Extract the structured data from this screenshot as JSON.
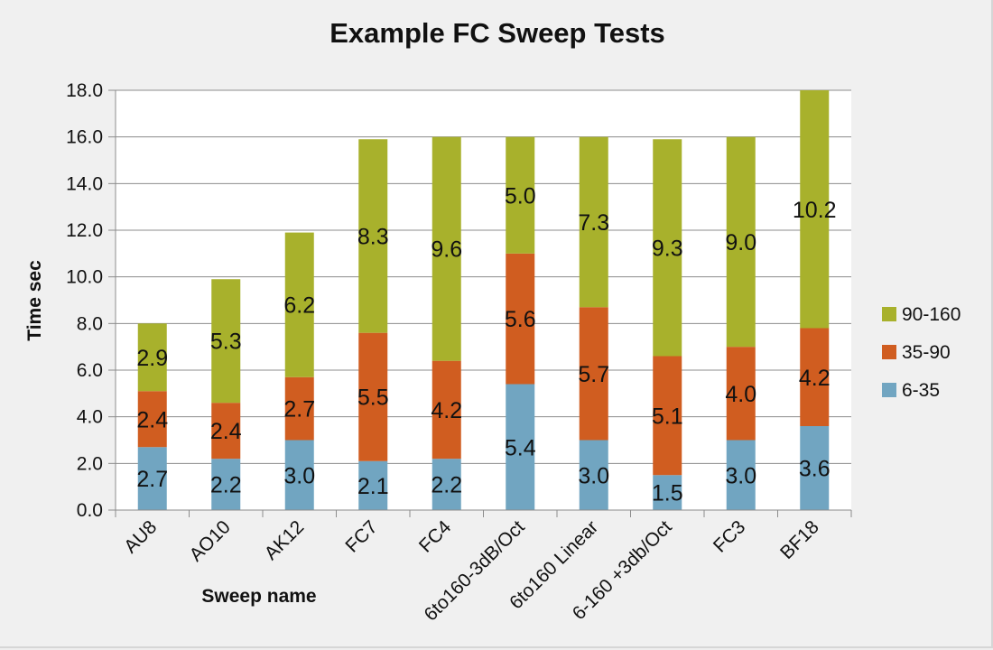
{
  "chart_data": {
    "type": "bar",
    "stacked": true,
    "title": "Example FC Sweep Tests",
    "xlabel": "Sweep name",
    "ylabel": "Time sec",
    "ylim": [
      0,
      18
    ],
    "y_ticks": [
      "0.0",
      "2.0",
      "4.0",
      "6.0",
      "8.0",
      "10.0",
      "12.0",
      "14.0",
      "16.0",
      "18.0"
    ],
    "grid": true,
    "legend_position": "right",
    "categories": [
      "AU8",
      "AO10",
      "AK12",
      "FC7",
      "FC4",
      "6to160-3dB/Oct",
      "6to160 Linear",
      "6-160 +3db/Oct",
      "FC3",
      "BF18"
    ],
    "series": [
      {
        "name": "6-35",
        "color": "#71a5c1",
        "values": [
          2.7,
          2.2,
          3.0,
          2.1,
          2.2,
          5.4,
          3.0,
          1.5,
          3.0,
          3.6
        ],
        "labels": [
          "2.7",
          "2.2",
          "3.0",
          "2.1",
          "2.2",
          "5.4",
          "3.0",
          "1.5",
          "3.0",
          "3.6"
        ]
      },
      {
        "name": "35-90",
        "color": "#d05d20",
        "values": [
          2.4,
          2.4,
          2.7,
          5.5,
          4.2,
          5.6,
          5.7,
          5.1,
          4.0,
          4.2
        ],
        "labels": [
          "2.4",
          "2.4",
          "2.7",
          "5.5",
          "4.2",
          "5.6",
          "5.7",
          "5.1",
          "4.0",
          "4.2"
        ]
      },
      {
        "name": "90-160",
        "color": "#a8b12c",
        "values": [
          2.9,
          5.3,
          6.2,
          8.3,
          9.6,
          5.0,
          7.3,
          9.3,
          9.0,
          10.2
        ],
        "labels": [
          "2.9",
          "5.3",
          "6.2",
          "8.3",
          "9.6",
          "5.0",
          "7.3",
          "9.3",
          "9.0",
          "10.2"
        ]
      }
    ]
  }
}
